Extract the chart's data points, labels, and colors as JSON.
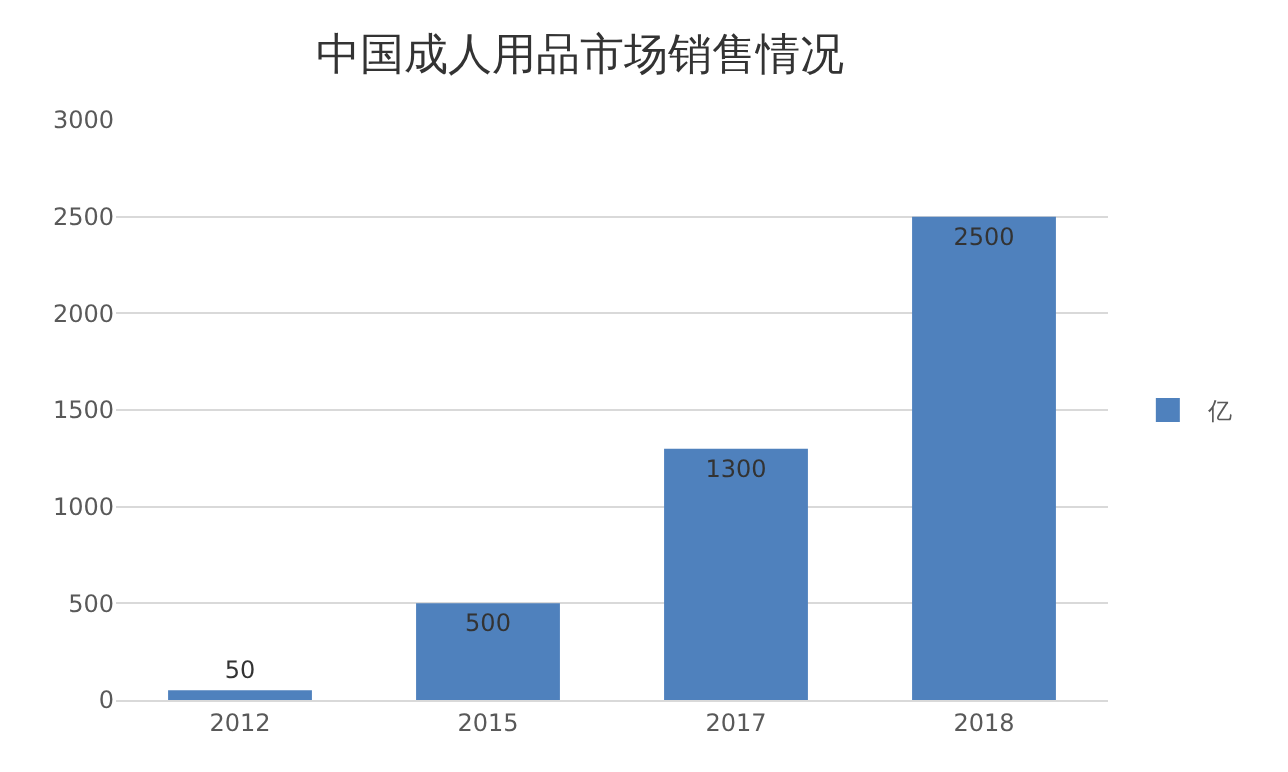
{
  "chart_data": {
    "type": "bar",
    "title": "中国成人用品市场销售情况",
    "categories": [
      "2012",
      "2015",
      "2017",
      "2018"
    ],
    "series": [
      {
        "name": "亿",
        "color": "#4f81bd",
        "values": [
          50,
          500,
          1300,
          2500
        ]
      }
    ],
    "ylim": [
      0,
      3000
    ],
    "yticks": [
      0,
      500,
      1000,
      1500,
      2000,
      2500,
      3000
    ],
    "grid": "y",
    "legend": "right",
    "data_labels": true
  }
}
